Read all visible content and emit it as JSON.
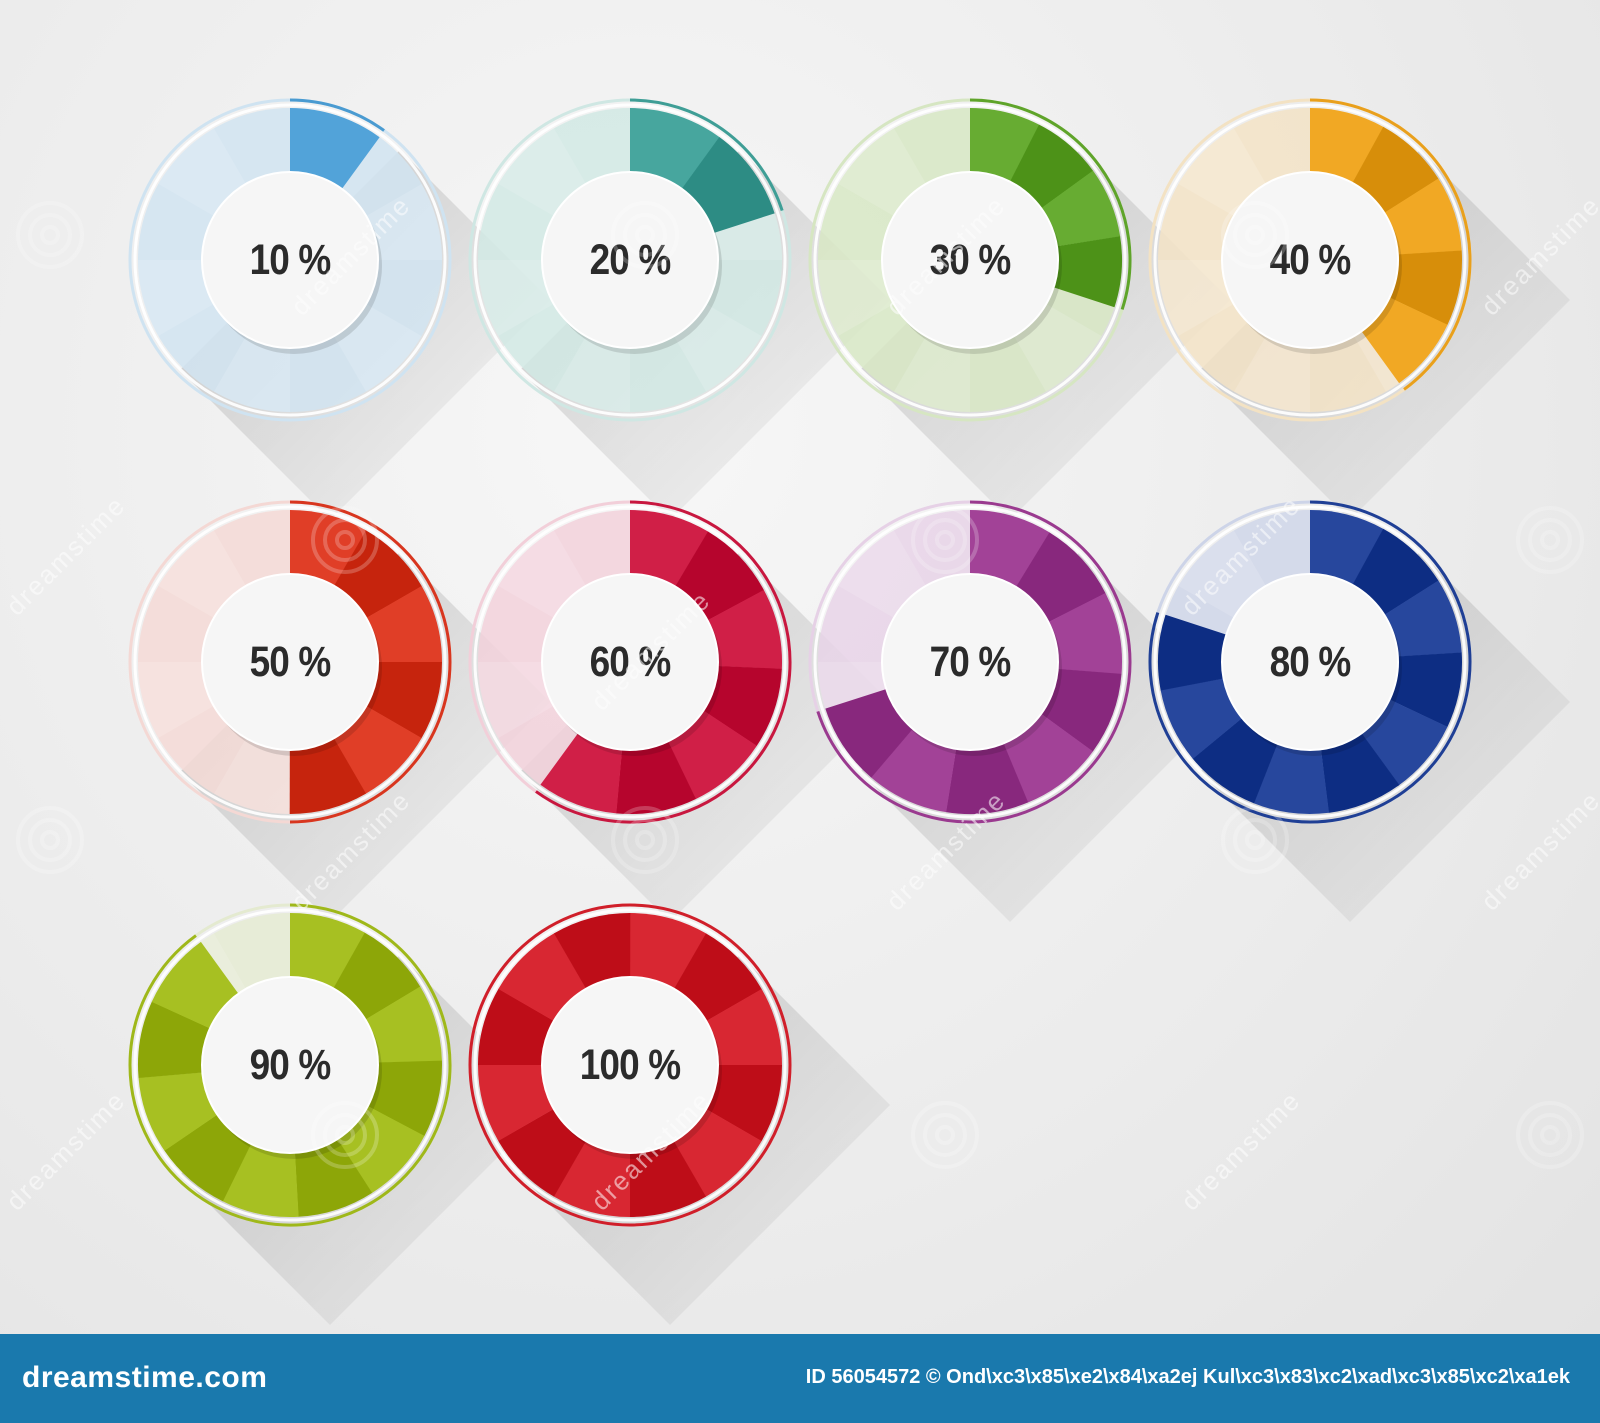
{
  "gauges": [
    {
      "id": "g10",
      "label": "10 %",
      "value": 0.1,
      "color": "#4a9bd1",
      "track": "#cfe3f1"
    },
    {
      "id": "g20",
      "label": "20 %",
      "value": 0.2,
      "color": "#3f9e96",
      "track": "#cfe7e3"
    },
    {
      "id": "g30",
      "label": "30 %",
      "value": 0.3,
      "color": "#5fa42a",
      "track": "#d6e6c2"
    },
    {
      "id": "g40",
      "label": "40 %",
      "value": 0.4,
      "color": "#e9a01c",
      "track": "#f3e2c3"
    },
    {
      "id": "g50",
      "label": "50 %",
      "value": 0.5,
      "color": "#d8361f",
      "track": "#f4d8d4"
    },
    {
      "id": "g60",
      "label": "60 %",
      "value": 0.6,
      "color": "#c8173f",
      "track": "#f2cfd9"
    },
    {
      "id": "g70",
      "label": "70 %",
      "value": 0.7,
      "color": "#9a3a8f",
      "track": "#e6d1e6"
    },
    {
      "id": "g80",
      "label": "80 %",
      "value": 0.8,
      "color": "#1f3f95",
      "track": "#cdd4e8"
    },
    {
      "id": "g90",
      "label": "90 %",
      "value": 0.9,
      "color": "#9fb81a",
      "track": "#e4ead0"
    },
    {
      "id": "g100",
      "label": "100 %",
      "value": 1.0,
      "color": "#d01f2a",
      "track": "#f3d2d2"
    }
  ],
  "footer": {
    "logo": "dreamstime.com",
    "credit": "ID 56054572 © Ond\\xc3\\x85\\xe2\\x84\\xa2ej Kul\\xc3\\x83\\xc2\\xad\\xc3\\x85\\xc2\\xa1ek"
  },
  "watermark_text": "dreamstime"
}
